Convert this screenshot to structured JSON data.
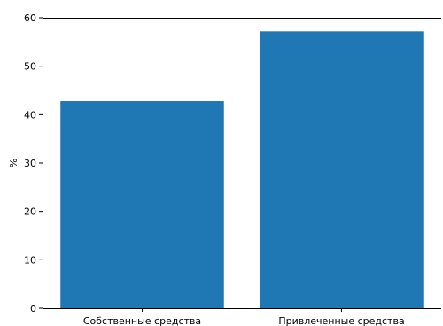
{
  "chart_data": {
    "type": "bar",
    "categories": [
      "Собственные средства",
      "Привлеченные средства"
    ],
    "values": [
      42.8,
      57.2
    ],
    "title": "",
    "xlabel": "",
    "ylabel": "%",
    "ylim": [
      0,
      60
    ],
    "yticks": [
      "0",
      "10",
      "20",
      "30",
      "40",
      "50",
      "60"
    ],
    "grid": false,
    "bar_color": "#1f77b4"
  }
}
